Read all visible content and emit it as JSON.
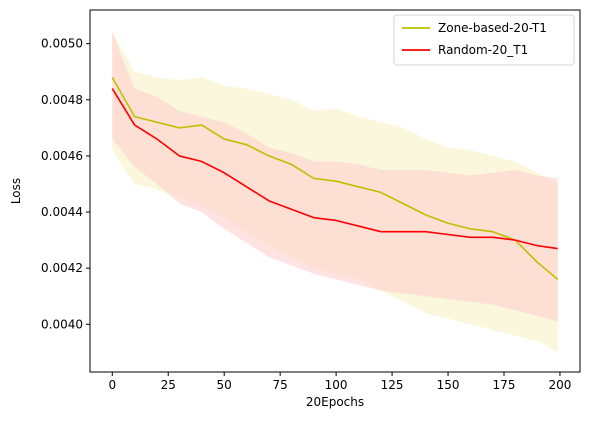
{
  "chart_data": {
    "type": "line",
    "title": "",
    "xlabel": "20Epochs",
    "ylabel": "Loss",
    "xlim": [
      -9.95,
      208.95
    ],
    "ylim": [
      0.00383,
      0.00512
    ],
    "xticks": [
      0,
      25,
      50,
      75,
      100,
      125,
      150,
      175,
      200
    ],
    "yticks": [
      0.004,
      0.0042,
      0.0044,
      0.0046,
      0.0048,
      0.005
    ],
    "ytick_labels": [
      "0.0040",
      "0.0042",
      "0.0044",
      "0.0046",
      "0.0048",
      "0.0050"
    ],
    "grid": false,
    "legend": "top-right",
    "x": [
      0,
      10,
      20,
      30,
      40,
      50,
      60,
      70,
      80,
      90,
      100,
      110,
      120,
      130,
      140,
      150,
      160,
      170,
      180,
      190,
      199
    ],
    "series": [
      {
        "name": "Zone-based-20-T1",
        "color": "#bfbf00",
        "band_color": "#f5f0c0",
        "values": [
          0.00488,
          0.00474,
          0.00472,
          0.0047,
          0.00471,
          0.00466,
          0.00464,
          0.0046,
          0.00457,
          0.00452,
          0.00451,
          0.00449,
          0.00447,
          0.00443,
          0.00439,
          0.00436,
          0.00434,
          0.00433,
          0.0043,
          0.00422,
          0.00416
        ],
        "band_lower": [
          0.00462,
          0.0045,
          0.00448,
          0.00445,
          0.00442,
          0.00438,
          0.00433,
          0.00428,
          0.00424,
          0.0042,
          0.00418,
          0.00416,
          0.00412,
          0.00408,
          0.00404,
          0.00402,
          0.004,
          0.00398,
          0.00396,
          0.00394,
          0.0039
        ],
        "band_upper": [
          0.00504,
          0.0049,
          0.00488,
          0.00487,
          0.00488,
          0.00485,
          0.00484,
          0.00482,
          0.0048,
          0.00476,
          0.00477,
          0.00474,
          0.00472,
          0.0047,
          0.00466,
          0.00463,
          0.00462,
          0.0046,
          0.00458,
          0.00454,
          0.0045
        ]
      },
      {
        "name": "Random-20_T1",
        "color": "#ff0000",
        "band_color": "#ffcccc",
        "values": [
          0.00484,
          0.00471,
          0.00466,
          0.0046,
          0.00458,
          0.00454,
          0.00449,
          0.00444,
          0.00441,
          0.00438,
          0.00437,
          0.00435,
          0.00433,
          0.00433,
          0.00433,
          0.00432,
          0.00431,
          0.00431,
          0.0043,
          0.00428,
          0.00427
        ],
        "band_lower": [
          0.00466,
          0.00456,
          0.0045,
          0.00443,
          0.0044,
          0.00434,
          0.00429,
          0.00424,
          0.00421,
          0.00418,
          0.00416,
          0.00414,
          0.00412,
          0.00411,
          0.0041,
          0.00409,
          0.00408,
          0.00407,
          0.00405,
          0.00403,
          0.00401
        ],
        "band_upper": [
          0.00504,
          0.00484,
          0.00481,
          0.00476,
          0.00474,
          0.00472,
          0.00468,
          0.00463,
          0.00461,
          0.00458,
          0.00458,
          0.00457,
          0.00455,
          0.00455,
          0.00455,
          0.00454,
          0.00453,
          0.00454,
          0.00455,
          0.00453,
          0.00452
        ]
      }
    ]
  }
}
